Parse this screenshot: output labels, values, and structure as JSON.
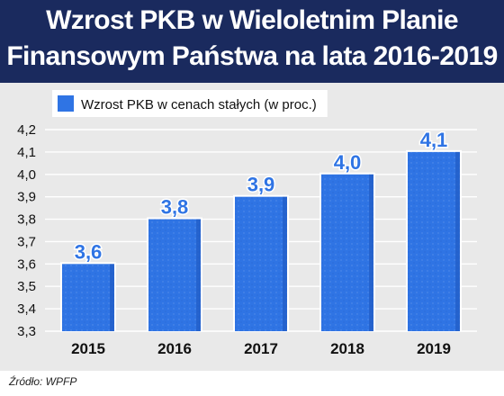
{
  "title_lines": [
    "Wzrost PKB w Wieloletnim Planie",
    "Finansowym Państwa na lata 2016-2019"
  ],
  "source": "Źródło: WPFP",
  "colors": {
    "header_bg": "#1a2a5e",
    "bar": "#2f74e4",
    "bar_dark": "#1b52b8",
    "label": "#2f74e4"
  },
  "chart_data": {
    "type": "bar",
    "categories": [
      "2015",
      "2016",
      "2017",
      "2018",
      "2019"
    ],
    "series": [
      {
        "name": "Wzrost PKB w cenach stałych (w proc.)",
        "values": [
          3.6,
          3.8,
          3.9,
          4.0,
          4.1
        ]
      }
    ],
    "data_labels": [
      "3,6",
      "3,8",
      "3,9",
      "4,0",
      "4,1"
    ],
    "yticks": [
      "3,3",
      "3,4",
      "3,5",
      "3,6",
      "3,7",
      "3,8",
      "3,9",
      "4,0",
      "4,1",
      "4,2"
    ],
    "ylim": [
      3.3,
      4.2
    ],
    "grid": true,
    "legend_position": "top-left",
    "title": "Wzrost PKB w Wieloletnim Planie Finansowym Państwa na lata 2016-2019",
    "xlabel": "",
    "ylabel": ""
  }
}
